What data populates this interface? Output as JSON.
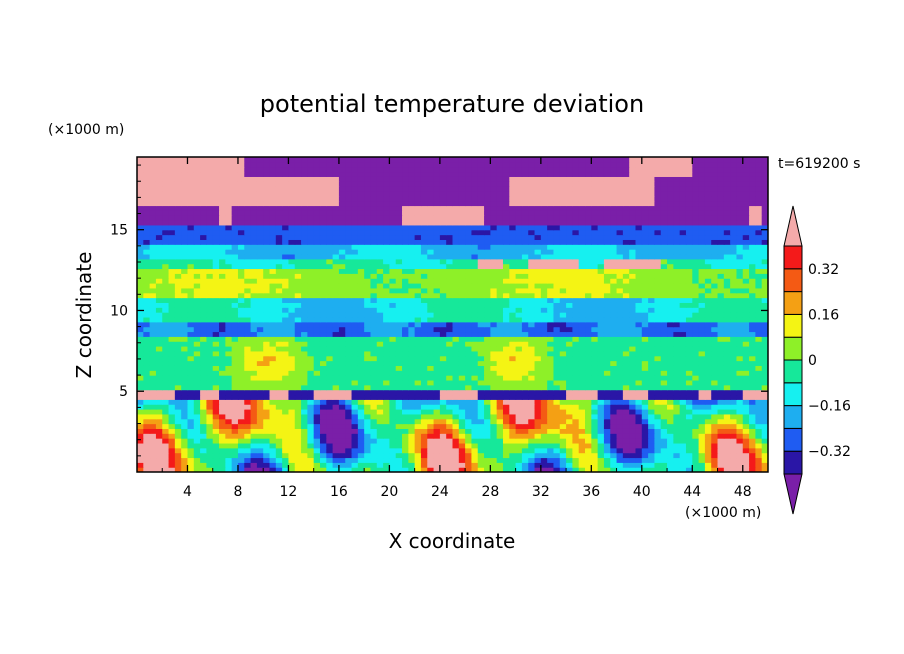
{
  "chart_data": {
    "type": "heatmap",
    "title": "potential temperature deviation",
    "xlabel": "X coordinate",
    "ylabel": "Z coordinate",
    "x_unit": "(×1000 m)",
    "y_unit": "(×1000 m)",
    "time_label": "t=619200 s",
    "xlim": [
      0,
      50
    ],
    "ylim": [
      0,
      19.5
    ],
    "x_ticks": [
      4,
      8,
      12,
      16,
      20,
      24,
      28,
      32,
      36,
      40,
      44,
      48
    ],
    "y_ticks": [
      5,
      10,
      15
    ],
    "colorbar": {
      "levels": [
        -0.4,
        -0.32,
        -0.24,
        -0.16,
        -0.08,
        0,
        0.08,
        0.16,
        0.24,
        0.32,
        0.4
      ],
      "tick_labels": [
        "0.32",
        "0.16",
        "0",
        "−0.16",
        "−0.32"
      ],
      "tick_values": [
        0.32,
        0.16,
        0,
        -0.16,
        -0.32
      ],
      "colors": [
        "#7a1fa8",
        "#2a16a6",
        "#1f5cf2",
        "#1eaef0",
        "#16f0f0",
        "#16e89a",
        "#8ef028",
        "#f4f414",
        "#f4a014",
        "#f45a14",
        "#f41a1a",
        "#f4aaaa"
      ],
      "extend": "both"
    }
  }
}
